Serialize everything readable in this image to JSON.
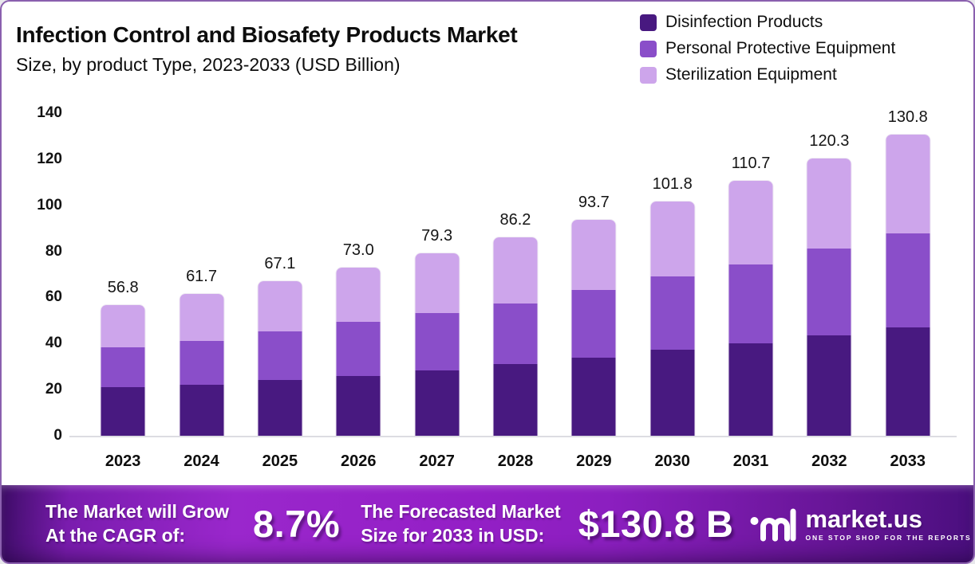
{
  "header": {
    "title": "Infection Control and Biosafety Products Market",
    "subtitle": "Size, by product Type, 2023-2033 (USD Billion)"
  },
  "legend": [
    {
      "label": "Disinfection Products",
      "color": "#481980"
    },
    {
      "label": "Personal Protective Equipment",
      "color": "#8a4ec9"
    },
    {
      "label": "Sterilization Equipment",
      "color": "#cda5eb"
    }
  ],
  "chart_data": {
    "type": "bar",
    "subtype": "stacked-vertical",
    "title": "Infection Control and Biosafety Products Market Size, by product Type, 2023-2033 (USD Billion)",
    "unit": "USD Billion",
    "categories": [
      "2023",
      "2024",
      "2025",
      "2026",
      "2027",
      "2028",
      "2029",
      "2030",
      "2031",
      "2032",
      "2033"
    ],
    "series": [
      {
        "name": "Disinfection Products",
        "color": "#481980",
        "values": [
          21.0,
          22.1,
          24.1,
          26.1,
          28.5,
          31.0,
          34.0,
          37.5,
          40.2,
          43.6,
          47.2
        ]
      },
      {
        "name": "Personal Protective Equipment",
        "color": "#8a4ec9",
        "values": [
          17.2,
          19.0,
          21.2,
          23.2,
          24.9,
          26.4,
          29.2,
          31.6,
          34.0,
          37.6,
          40.7
        ]
      },
      {
        "name": "Sterilization Equipment",
        "color": "#cda5eb",
        "values": [
          18.6,
          20.6,
          21.8,
          23.7,
          25.9,
          28.8,
          30.5,
          32.7,
          36.5,
          39.1,
          42.9
        ]
      }
    ],
    "totals": [
      56.8,
      61.7,
      67.1,
      73.0,
      79.3,
      86.2,
      93.7,
      101.8,
      110.7,
      120.3,
      130.8
    ],
    "ylim": [
      0,
      140
    ],
    "yticks": [
      0,
      20,
      40,
      60,
      80,
      100,
      120,
      140
    ],
    "grid": false,
    "legend_position": "top-right",
    "data_labels": "total-above-bar"
  },
  "banner": {
    "cagr": {
      "line1": "The Market will Grow",
      "line2": "At the CAGR of:",
      "value": "8.7%"
    },
    "forecast": {
      "line1": "The Forecasted Market",
      "line2": "Size for 2033 in USD:",
      "value": "$130.8 B"
    },
    "logo": {
      "name": "market.us",
      "tagline": "ONE STOP SHOP FOR THE REPORTS"
    }
  }
}
